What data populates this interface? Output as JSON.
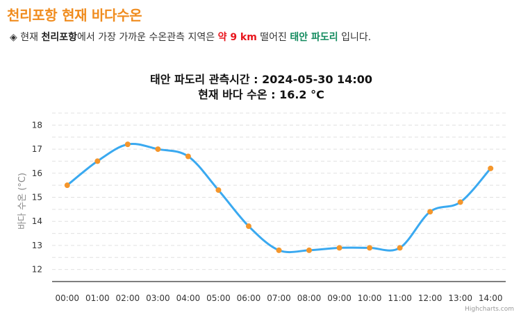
{
  "header": {
    "title": "천리포항 현재 바다수온",
    "info": {
      "bullet": "◈",
      "prefix": "현재",
      "place": "천리포항",
      "middle": "에서 가장 가까운 수온관측 지역은",
      "distance": "약 9 km",
      "suffix_1": "떨어진",
      "station": "태안 파도리",
      "suffix_2": "입니다."
    }
  },
  "colors": {
    "title": "#f08c1e",
    "line": "#3aa9f0",
    "marker": "#f4962c",
    "distance": "#e8141b",
    "station": "#118a5d"
  },
  "chart_data": {
    "type": "line",
    "title": "태안 파도리 관측시간 : 2024-05-30 14:00",
    "subtitle": "현재 바다 수온 : 16.2 °C",
    "ylabel": "바다 수온 (°C)",
    "xlabel": "",
    "ylim": [
      11.5,
      18.5
    ],
    "yticks": [
      12,
      13,
      14,
      15,
      16,
      17,
      18
    ],
    "grid": true,
    "categories": [
      "00:00",
      "01:00",
      "02:00",
      "03:00",
      "04:00",
      "05:00",
      "06:00",
      "07:00",
      "08:00",
      "09:00",
      "10:00",
      "11:00",
      "12:00",
      "13:00",
      "14:00"
    ],
    "values": [
      15.5,
      16.5,
      17.2,
      17.0,
      16.7,
      15.3,
      13.8,
      12.8,
      12.8,
      12.9,
      12.9,
      12.9,
      14.4,
      14.8,
      16.2
    ],
    "credit": "Highcharts.com"
  }
}
